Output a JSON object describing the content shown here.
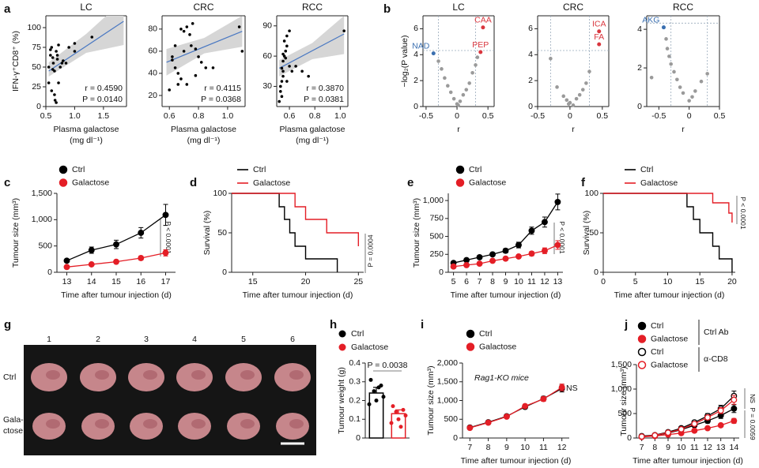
{
  "chart_data": [
    {
      "type": "scatter",
      "panel": "a",
      "title": "LC",
      "ylabel": "IFN-γ⁺CD8⁺ (%)",
      "xlabel": [
        "Plasma galactose",
        "(mg dl⁻¹)"
      ],
      "x": [
        0.55,
        0.58,
        0.6,
        0.62,
        0.63,
        0.65,
        0.66,
        0.68,
        0.7,
        0.72,
        0.75,
        0.78,
        0.8,
        0.55,
        0.6,
        0.65,
        0.7,
        0.58,
        0.62,
        0.9,
        1.0,
        1.3,
        1.0,
        0.72,
        0.68,
        0.85
      ],
      "values": [
        50,
        72,
        75,
        62,
        55,
        15,
        8,
        70,
        60,
        78,
        50,
        55,
        58,
        30,
        20,
        45,
        65,
        65,
        47,
        75,
        80,
        88,
        70,
        30,
        5,
        55
      ],
      "color": "#000000",
      "trend": {
        "x": [
          0.55,
          1.85
        ],
        "y": [
          45,
          108
        ]
      },
      "band": {
        "x": [
          0.55,
          1.2,
          1.85
        ],
        "lower": [
          38,
          68,
          78
        ],
        "upper": [
          56,
          92,
          135
        ]
      },
      "xlim": [
        0.5,
        1.9
      ],
      "xticks": [
        0.5,
        {
          "value": 1.0,
          "label": "1.0"
        },
        1.5
      ],
      "ylim": [
        0,
        115
      ],
      "yticks": [
        0,
        25,
        50,
        75,
        100
      ],
      "annotations": [
        "r = 0.4590",
        "P = 0.0140"
      ]
    },
    {
      "type": "scatter",
      "title": "CRC",
      "xlabel": [
        "Plasma galactose",
        "(mg dl⁻¹)"
      ],
      "x": [
        0.6,
        0.62,
        0.64,
        0.66,
        0.68,
        0.7,
        0.7,
        0.72,
        0.74,
        0.75,
        0.76,
        0.78,
        0.8,
        0.82,
        0.85,
        0.68,
        0.64,
        0.72,
        0.9,
        1.08,
        1.1,
        0.78,
        0.66,
        0.62
      ],
      "values": [
        25,
        55,
        45,
        40,
        80,
        78,
        60,
        82,
        75,
        65,
        85,
        62,
        55,
        50,
        45,
        35,
        65,
        30,
        45,
        82,
        60,
        38,
        30,
        52
      ],
      "color": "#000000",
      "trend": {
        "x": [
          0.58,
          1.1
        ],
        "y": [
          50,
          78
        ]
      },
      "band": {
        "x": [
          0.58,
          0.84,
          1.1
        ],
        "lower": [
          38,
          58,
          64
        ],
        "upper": [
          62,
          72,
          92
        ]
      },
      "xlim": [
        0.55,
        1.12
      ],
      "xticks": [
        0.6,
        0.8,
        {
          "value": 1.0,
          "label": "1.0"
        }
      ],
      "ylim": [
        10,
        92
      ],
      "yticks": [
        20,
        40,
        60,
        80
      ],
      "annotations": [
        "r = 0.4115",
        "P = 0.0368"
      ]
    },
    {
      "type": "scatter",
      "title": "RCC",
      "xlabel": [
        "Plasma galactose",
        "(mg dl⁻¹)"
      ],
      "x": [
        0.52,
        0.53,
        0.54,
        0.55,
        0.55,
        0.56,
        0.57,
        0.58,
        0.58,
        0.6,
        0.62,
        0.65,
        0.55,
        0.53,
        0.54,
        0.56,
        0.6,
        0.7,
        0.75,
        0.58,
        0.57,
        0.55,
        0.54,
        1.03
      ],
      "values": [
        15,
        25,
        35,
        45,
        55,
        60,
        65,
        70,
        80,
        50,
        45,
        50,
        40,
        30,
        20,
        75,
        85,
        45,
        40,
        35,
        58,
        62,
        48,
        85
      ],
      "color": "#000000",
      "trend": {
        "x": [
          0.52,
          1.03
        ],
        "y": [
          48,
          82
        ]
      },
      "band": {
        "x": [
          0.52,
          0.78,
          1.03
        ],
        "lower": [
          40,
          57,
          62
        ],
        "upper": [
          56,
          73,
          100
        ]
      },
      "xlim": [
        0.5,
        1.06
      ],
      "xticks": [
        0.6,
        0.8,
        {
          "value": 1.0,
          "label": "1.0"
        }
      ],
      "ylim": [
        10,
        100
      ],
      "yticks": [
        30,
        60,
        90
      ],
      "annotations": [
        "r = 0.3870",
        "P = 0.0381"
      ]
    },
    {
      "type": "volcano",
      "panel": "b",
      "title": "LC",
      "ylabel": "−log₂(P value)",
      "xlabel": [
        "r"
      ],
      "x": [
        -0.3,
        -0.25,
        -0.2,
        -0.15,
        -0.1,
        -0.05,
        0,
        0.05,
        0.1,
        0.15,
        0.2,
        0.25,
        0.3,
        0.33,
        0.02
      ],
      "values": [
        3.5,
        2.9,
        2.2,
        1.6,
        1.1,
        0.6,
        0.2,
        0.4,
        0.9,
        1.3,
        1.8,
        2.6,
        3.2,
        3.8,
        0.1
      ],
      "color": "#9a9a9a",
      "highlights": {
        "labels": [
          "NAD",
          "CAA",
          "PEP"
        ],
        "x": [
          -0.38,
          0.42,
          0.38
        ],
        "values": [
          4.1,
          6.1,
          4.2
        ],
        "colors": [
          "#3a6fb0",
          "#d9363e",
          "#d9363e"
        ]
      },
      "thresholds": {
        "x": [
          -0.3,
          0.3
        ],
        "y": 4.32
      },
      "xlim": [
        -0.55,
        0.6
      ],
      "xticks": [
        -0.5,
        0,
        0.5
      ],
      "ylim": [
        0,
        7
      ],
      "yticks": [
        0,
        2,
        4,
        6
      ]
    },
    {
      "type": "volcano",
      "title": "CRC",
      "xlabel": [
        "r"
      ],
      "x": [
        -0.3,
        -0.2,
        -0.1,
        -0.05,
        0,
        0.05,
        0.1,
        0.15,
        0.2,
        0.25,
        0.3,
        -0.02
      ],
      "values": [
        3.7,
        1.5,
        0.8,
        0.5,
        0.3,
        0.1,
        0.6,
        0.9,
        1.3,
        1.8,
        2.7,
        0.2
      ],
      "color": "#9a9a9a",
      "highlights": {
        "labels": [
          "ICA",
          "FA"
        ],
        "x": [
          0.45,
          0.45
        ],
        "values": [
          5.8,
          4.8
        ],
        "colors": [
          "#d9363e",
          "#d9363e"
        ]
      },
      "thresholds": {
        "x": [
          -0.3,
          0.3
        ],
        "y": 4.32
      },
      "xlim": [
        -0.5,
        0.6
      ],
      "xticks": [
        -0.5,
        0,
        0.5
      ],
      "ylim": [
        0,
        7
      ],
      "yticks": [
        0,
        2,
        4,
        6
      ]
    },
    {
      "type": "volcano",
      "title": "RCC",
      "xlabel": [
        "r"
      ],
      "x": [
        -0.38,
        -0.36,
        -0.33,
        -0.3,
        -0.25,
        -0.2,
        -0.15,
        -0.1,
        0,
        0.05,
        0.1,
        0.2,
        0.3,
        -0.62
      ],
      "values": [
        3.5,
        3.0,
        2.6,
        2.2,
        1.8,
        1.4,
        1.0,
        0.7,
        0.3,
        0.5,
        0.8,
        1.3,
        1.7,
        1.5
      ],
      "color": "#9a9a9a",
      "highlights": {
        "labels": [
          "AKG"
        ],
        "x": [
          -0.42
        ],
        "values": [
          4.1
        ],
        "colors": [
          "#3a6fb0"
        ]
      },
      "thresholds": {
        "x": [
          -0.3,
          0.3
        ],
        "y": 4.32
      },
      "xlim": [
        -0.7,
        0.5
      ],
      "xticks": [
        -0.5,
        0,
        0.5
      ],
      "ylim": [
        0,
        4.7
      ],
      "yticks": [
        0,
        2,
        4
      ]
    },
    {
      "type": "line",
      "panel": "c",
      "ylabel": "Tumour size (mm³)",
      "xlabel": [
        "Time after tumour injection (d)"
      ],
      "x": [
        13,
        14,
        15,
        16,
        17
      ],
      "series": [
        {
          "name": "Ctrl",
          "color": "#000000",
          "values": [
            220,
            420,
            530,
            750,
            1090
          ],
          "errors": [
            30,
            60,
            80,
            100,
            200
          ]
        },
        {
          "name": "Galactose",
          "color": "#e41e26",
          "values": [
            100,
            150,
            200,
            270,
            370
          ],
          "errors": [
            20,
            25,
            30,
            40,
            60
          ]
        }
      ],
      "xlim": [
        12.6,
        17.4
      ],
      "xticks": [
        13,
        14,
        15,
        16,
        17
      ],
      "ylim": [
        0,
        1500
      ],
      "yticks": [
        0,
        500,
        {
          "value": 1000,
          "label": "1,000"
        },
        {
          "value": 1500,
          "label": "1,500"
        }
      ],
      "annotations": [
        "P < 0.0001"
      ]
    },
    {
      "type": "step",
      "panel": "d",
      "ylabel": "Survival (%)",
      "xlabel": [
        "Time after tumour injection (d)"
      ],
      "series": [
        {
          "name": "Ctrl",
          "color": "#000000",
          "x": [
            13,
            17.5,
            18,
            18.5,
            19,
            20,
            23
          ],
          "values": [
            100,
            83,
            67,
            50,
            33,
            17,
            0
          ]
        },
        {
          "name": "Galactose",
          "color": "#e41e26",
          "x": [
            13,
            19,
            20,
            22,
            25
          ],
          "values": [
            100,
            83,
            67,
            50,
            33
          ]
        }
      ],
      "xlim": [
        13,
        25.5
      ],
      "xticks": [
        15,
        20,
        25
      ],
      "ylim": [
        0,
        100
      ],
      "yticks": [
        0,
        50,
        100
      ],
      "annotations": [
        "P = 0.0004"
      ]
    },
    {
      "type": "line",
      "panel": "e",
      "ylabel": "Tumour size (mm³)",
      "xlabel": [
        "Time after tumour injection (d)"
      ],
      "x": [
        5,
        6,
        7,
        8,
        9,
        10,
        11,
        12,
        13
      ],
      "series": [
        {
          "name": "Ctrl",
          "color": "#000000",
          "values": [
            130,
            170,
            210,
            250,
            300,
            380,
            580,
            700,
            980
          ],
          "errors": [
            15,
            20,
            25,
            25,
            30,
            40,
            50,
            70,
            110
          ]
        },
        {
          "name": "Galactose",
          "color": "#e41e26",
          "values": [
            80,
            100,
            120,
            160,
            190,
            220,
            260,
            300,
            380
          ],
          "errors": [
            10,
            12,
            15,
            20,
            20,
            25,
            30,
            40,
            60
          ]
        }
      ],
      "xlim": [
        4.6,
        13.4
      ],
      "xticks": [
        5,
        6,
        7,
        8,
        9,
        10,
        11,
        12,
        13
      ],
      "ylim": [
        0,
        1100
      ],
      "yticks": [
        0,
        250,
        500,
        750,
        {
          "value": 1000,
          "label": "1,000"
        }
      ],
      "annotations": [
        "P < 0.0001"
      ]
    },
    {
      "type": "step",
      "panel": "f",
      "ylabel": "Survival (%)",
      "xlabel": [
        "Time after tumour injection (d)"
      ],
      "series": [
        {
          "name": "Ctrl",
          "color": "#000000",
          "x": [
            0,
            13,
            14,
            15,
            17,
            18,
            20
          ],
          "values": [
            100,
            83,
            67,
            50,
            33,
            17,
            0
          ]
        },
        {
          "name": "Galactose",
          "color": "#e41e26",
          "x": [
            0,
            17,
            19.5,
            20
          ],
          "values": [
            100,
            88,
            75,
            63
          ]
        }
      ],
      "xlim": [
        0,
        20.5
      ],
      "xticks": [
        0,
        5,
        10,
        15,
        20
      ],
      "ylim": [
        0,
        100
      ],
      "yticks": [
        0,
        50,
        100
      ],
      "annotations": [
        "P < 0.0001"
      ]
    },
    {
      "type": "image",
      "panel": "g",
      "columns": [
        "1",
        "2",
        "3",
        "4",
        "5",
        "6"
      ],
      "rows": [
        [
          "Ctrl"
        ],
        [
          "Gala-",
          "ctose"
        ]
      ]
    },
    {
      "type": "bar",
      "panel": "h",
      "ylabel": "Tumour weight (g)",
      "series": [
        {
          "name": "Ctrl",
          "color": "#000000",
          "mean": 0.24,
          "error": 0.03,
          "points": [
            0.31,
            0.28,
            0.25,
            0.22,
            0.2,
            0.18,
            0.27
          ]
        },
        {
          "name": "Galactose",
          "color": "#e41e26",
          "mean": 0.13,
          "error": 0.02,
          "points": [
            0.17,
            0.15,
            0.14,
            0.12,
            0.1,
            0.08,
            0.06
          ]
        }
      ],
      "ylim": [
        0,
        0.4
      ],
      "yticks": [
        0,
        0.1,
        0.2,
        0.3,
        0.4
      ],
      "annotations": [
        "P = 0.0038"
      ]
    },
    {
      "type": "line",
      "panel": "i",
      "ylabel": "Tumour size (mm³)",
      "xlabel": [
        "Time after tumour injection (d)"
      ],
      "x": [
        7,
        8,
        9,
        10,
        11,
        12
      ],
      "series": [
        {
          "name": "Ctrl",
          "color": "#000000",
          "values": [
            280,
            420,
            580,
            830,
            1050,
            1320
          ],
          "errors": [
            20,
            30,
            40,
            50,
            60,
            90
          ]
        },
        {
          "name": "Galactose",
          "color": "#e41e26",
          "values": [
            270,
            410,
            570,
            850,
            1040,
            1350
          ],
          "errors": [
            20,
            30,
            40,
            50,
            60,
            90
          ]
        }
      ],
      "xlim": [
        6.6,
        12.4
      ],
      "xticks": [
        7,
        8,
        9,
        10,
        11,
        12
      ],
      "ylim": [
        0,
        2000
      ],
      "yticks": [
        0,
        500,
        {
          "value": 1000,
          "label": "1,000"
        },
        {
          "value": 1500,
          "label": "1,500"
        },
        {
          "value": 2000,
          "label": "2,000"
        }
      ],
      "annotations": [
        "Rag1-KO mice",
        "NS"
      ]
    },
    {
      "type": "line",
      "panel": "j",
      "ylabel": "Tumour size (mm³)",
      "xlabel": [
        "Time after tumour injection (d)"
      ],
      "x": [
        7,
        8,
        9,
        10,
        11,
        12,
        13,
        14
      ],
      "series": [
        {
          "name": "Ctrl",
          "color": "#000000",
          "values": [
            30,
            50,
            100,
            170,
            260,
            350,
            460,
            600
          ],
          "errors": [
            5,
            8,
            15,
            25,
            35,
            45,
            60,
            80
          ]
        },
        {
          "name": "Galactose",
          "color": "#e41e26",
          "values": [
            20,
            40,
            70,
            100,
            150,
            200,
            260,
            350
          ],
          "errors": [
            5,
            6,
            10,
            15,
            20,
            25,
            35,
            50
          ]
        },
        {
          "name": "Ctrl",
          "color": "#000000",
          "marker": "open",
          "values": [
            40,
            60,
            120,
            200,
            320,
            450,
            600,
            860
          ],
          "errors": [
            5,
            8,
            15,
            25,
            35,
            50,
            70,
            100
          ]
        },
        {
          "name": "Galactose",
          "color": "#e41e26",
          "marker": "open",
          "values": [
            30,
            55,
            110,
            180,
            290,
            420,
            560,
            780
          ],
          "errors": [
            5,
            8,
            15,
            25,
            35,
            45,
            60,
            90
          ]
        }
      ],
      "groups": [
        "Ctrl Ab",
        "α-CD8"
      ],
      "xlim": [
        6.6,
        14.4
      ],
      "xticks": [
        7,
        8,
        9,
        10,
        11,
        12,
        13,
        14
      ],
      "ylim": [
        0,
        1500
      ],
      "yticks": [
        0,
        500,
        {
          "value": 1000,
          "label": "1,000"
        },
        {
          "value": 1500,
          "label": "1,500"
        }
      ],
      "annotations": [
        "NS",
        "P = 0.0059"
      ]
    }
  ]
}
